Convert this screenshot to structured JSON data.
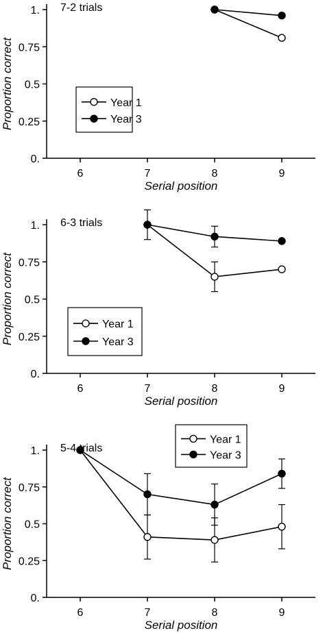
{
  "chart_data": [
    {
      "type": "line",
      "title": "7-2 trials",
      "xlabel": "Serial position",
      "ylabel": "Proportion correct",
      "x": [
        6,
        7,
        8,
        9
      ],
      "xlim": [
        5.5,
        9.5
      ],
      "ylim": [
        0,
        1
      ],
      "y_ticks": [
        "0.",
        "0.25",
        "0.5",
        "0.75",
        "1."
      ],
      "legend_placement": "left-middle",
      "series": [
        {
          "name": "Year 1",
          "marker": "open-circle",
          "values": [
            null,
            null,
            1.0,
            0.81
          ],
          "errors": [
            null,
            null,
            null,
            null
          ]
        },
        {
          "name": "Year 3",
          "marker": "filled-circle",
          "values": [
            null,
            null,
            1.0,
            0.96
          ],
          "errors": [
            null,
            null,
            null,
            null
          ]
        }
      ]
    },
    {
      "type": "line",
      "title": "6-3 trials",
      "xlabel": "Serial position",
      "ylabel": "Proportion correct",
      "x": [
        6,
        7,
        8,
        9
      ],
      "xlim": [
        5.5,
        9.5
      ],
      "ylim": [
        0,
        1
      ],
      "y_ticks": [
        "0.",
        "0.25",
        "0.5",
        "0.75",
        "1."
      ],
      "legend_placement": "bottom-left",
      "series": [
        {
          "name": "Year 1",
          "marker": "open-circle",
          "values": [
            null,
            1.0,
            0.65,
            0.7
          ],
          "errors": [
            null,
            0.1,
            0.1,
            null
          ]
        },
        {
          "name": "Year 3",
          "marker": "filled-circle",
          "values": [
            null,
            1.0,
            0.92,
            0.89
          ],
          "errors": [
            null,
            null,
            0.07,
            null
          ]
        }
      ]
    },
    {
      "type": "line",
      "title": "5-4 trials",
      "xlabel": "Serial position",
      "ylabel": "Proportion correct",
      "x": [
        6,
        7,
        8,
        9
      ],
      "xlim": [
        5.5,
        9.5
      ],
      "ylim": [
        0,
        1
      ],
      "y_ticks": [
        "0.",
        "0.25",
        "0.5",
        "0.75",
        "1."
      ],
      "legend_placement": "top-right",
      "series": [
        {
          "name": "Year 1",
          "marker": "open-circle",
          "values": [
            1.0,
            0.41,
            0.39,
            0.48
          ],
          "errors": [
            null,
            0.15,
            0.15,
            0.15
          ]
        },
        {
          "name": "Year 3",
          "marker": "filled-circle",
          "values": [
            1.0,
            0.7,
            0.63,
            0.84
          ],
          "errors": [
            null,
            0.14,
            0.14,
            0.1
          ]
        }
      ]
    }
  ]
}
